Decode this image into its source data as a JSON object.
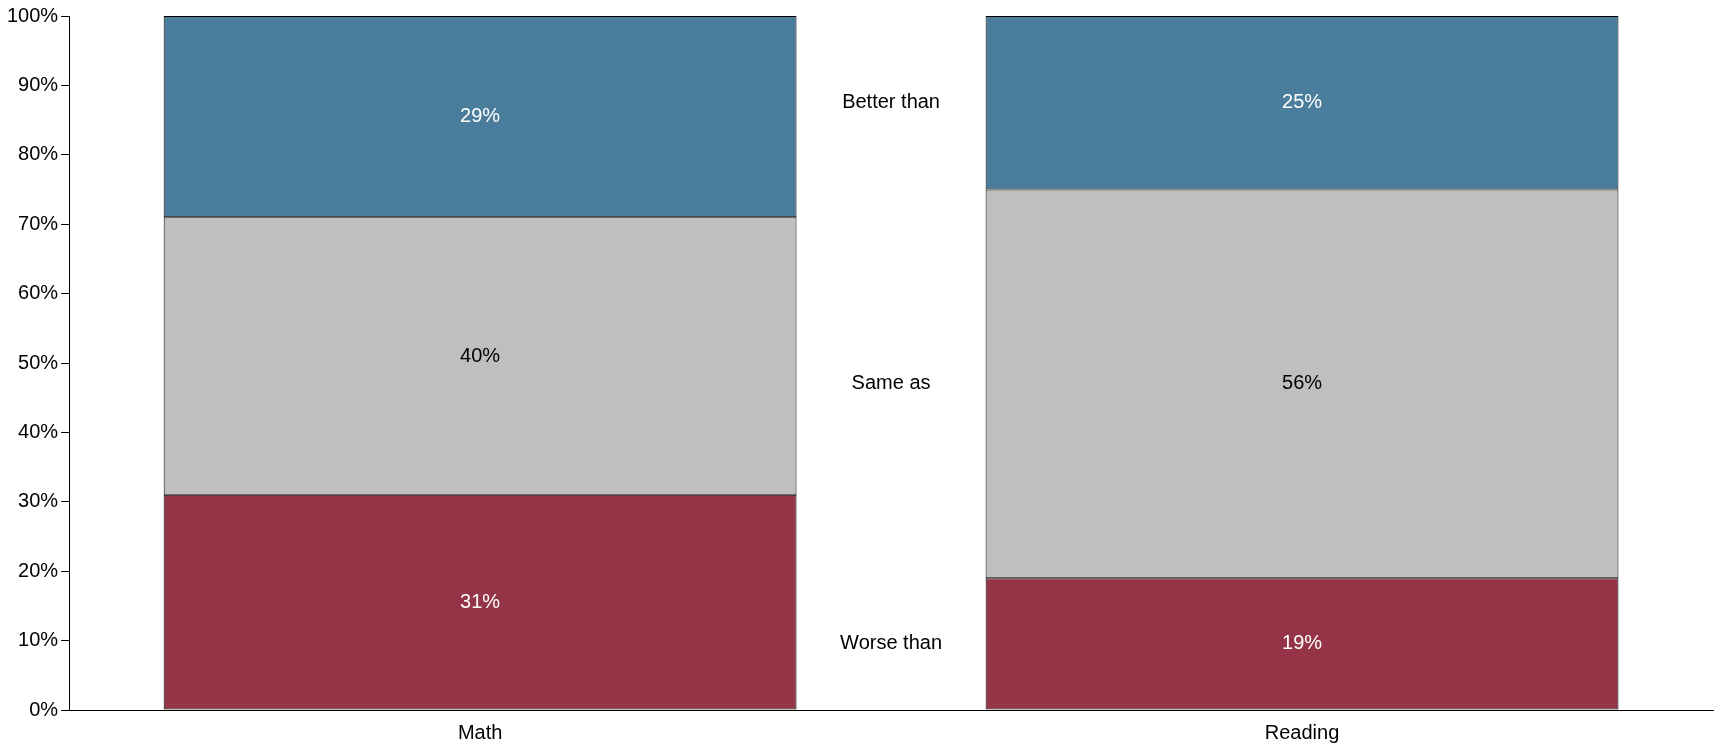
{
  "chart_data": {
    "type": "bar",
    "stacked": true,
    "categories": [
      "Math",
      "Reading"
    ],
    "series": [
      {
        "name": "Worse than",
        "color": "#943446",
        "values": [
          31,
          19
        ],
        "value_labels": [
          "31%",
          "19%"
        ]
      },
      {
        "name": "Same as",
        "color": "#bfbfbf",
        "values": [
          40,
          56
        ],
        "value_labels": [
          "40%",
          "56%"
        ]
      },
      {
        "name": "Better than",
        "color": "#4a7d9b",
        "values": [
          29,
          25
        ],
        "value_labels": [
          "29%",
          "25%"
        ]
      }
    ],
    "ylim": [
      0,
      100
    ],
    "yticks": [
      {
        "value": 0,
        "label": "0%"
      },
      {
        "value": 10,
        "label": "10%"
      },
      {
        "value": 20,
        "label": "20%"
      },
      {
        "value": 30,
        "label": "30%"
      },
      {
        "value": 40,
        "label": "40%"
      },
      {
        "value": 50,
        "label": "50%"
      },
      {
        "value": 60,
        "label": "60%"
      },
      {
        "value": 70,
        "label": "70%"
      },
      {
        "value": 80,
        "label": "80%"
      },
      {
        "value": 90,
        "label": "90%"
      },
      {
        "value": 100,
        "label": "100%"
      }
    ],
    "grid": false,
    "legend": false
  }
}
